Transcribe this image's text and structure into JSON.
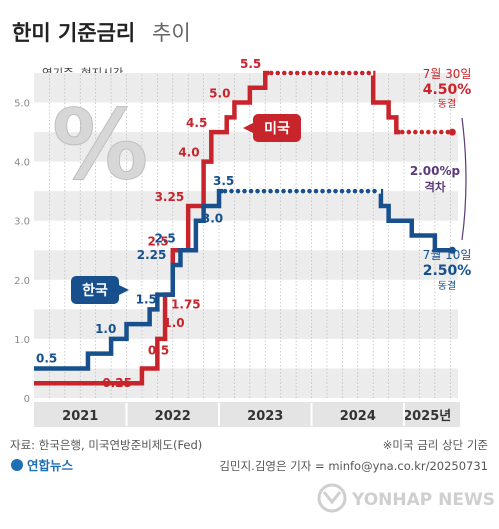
{
  "header": {
    "title": "한미 기준금리",
    "title_suffix": "추이",
    "unit_note": "연기준, 현지시간"
  },
  "badges": {
    "us": "미국",
    "kr": "한국"
  },
  "annotations": {
    "us_date": "7월 30일",
    "us_rate": "4.50%",
    "us_status": "동결",
    "kr_date": "7월 10일",
    "kr_rate": "2.50%",
    "kr_status": "동결",
    "gap_value": "2.00%p",
    "gap_label": "격차"
  },
  "footer": {
    "source": "자료: 한국은행, 미국연방준비제도(Fed)",
    "note": "※미국 금리 상단 기준",
    "credit": "김민지.김영은 기자 = minfo@yna.co.kr/20250731",
    "agency_logo": "연합뉴스",
    "watermark": "YONHAP NEWS"
  },
  "colors": {
    "us": "#c8242b",
    "kr": "#17508d",
    "gap": "#5a3a7a",
    "band": "#ececec"
  },
  "chart_data": {
    "type": "line",
    "step": true,
    "xlim": [
      "2021-01",
      "2025-08"
    ],
    "ylim": [
      0,
      5.5
    ],
    "y_ticks": [
      "0",
      "1.0",
      "2.0",
      "3.0",
      "4.0",
      "5.0"
    ],
    "x_tick_labels": [
      "2021",
      "2022",
      "2023",
      "2024",
      "2025년"
    ],
    "series": [
      {
        "name": "미국",
        "points": [
          {
            "date": "2021-01",
            "value": 0.25,
            "label": "0.25"
          },
          {
            "date": "2022-03",
            "value": 0.5,
            "label": "0.5"
          },
          {
            "date": "2022-05",
            "value": 1.0,
            "label": "1.0"
          },
          {
            "date": "2022-06",
            "value": 1.75,
            "label": "1.75"
          },
          {
            "date": "2022-07",
            "value": 2.5,
            "label": "2.5"
          },
          {
            "date": "2022-09",
            "value": 3.25,
            "label": "3.25"
          },
          {
            "date": "2022-11",
            "value": 4.0,
            "label": "4.0"
          },
          {
            "date": "2022-12",
            "value": 4.5,
            "label": "4.5"
          },
          {
            "date": "2023-02",
            "value": 4.75,
            "label": ""
          },
          {
            "date": "2023-03",
            "value": 5.0,
            "label": "5.0"
          },
          {
            "date": "2023-05",
            "value": 5.25,
            "label": ""
          },
          {
            "date": "2023-07",
            "value": 5.5,
            "label": "5.5"
          },
          {
            "date": "2024-09",
            "value": 5.0,
            "label": ""
          },
          {
            "date": "2024-11",
            "value": 4.75,
            "label": ""
          },
          {
            "date": "2024-12",
            "value": 4.5,
            "label": ""
          },
          {
            "date": "2025-07",
            "value": 4.5,
            "label": ""
          }
        ]
      },
      {
        "name": "한국",
        "points": [
          {
            "date": "2021-01",
            "value": 0.5,
            "label": "0.5"
          },
          {
            "date": "2021-08",
            "value": 0.75,
            "label": ""
          },
          {
            "date": "2021-11",
            "value": 1.0,
            "label": "1.0"
          },
          {
            "date": "2022-01",
            "value": 1.25,
            "label": ""
          },
          {
            "date": "2022-04",
            "value": 1.5,
            "label": "1.5"
          },
          {
            "date": "2022-05",
            "value": 1.75,
            "label": ""
          },
          {
            "date": "2022-07",
            "value": 2.25,
            "label": "2.25"
          },
          {
            "date": "2022-08",
            "value": 2.5,
            "label": "2.5"
          },
          {
            "date": "2022-10",
            "value": 3.0,
            "label": "3.0"
          },
          {
            "date": "2022-11",
            "value": 3.25,
            "label": ""
          },
          {
            "date": "2023-01",
            "value": 3.5,
            "label": "3.5"
          },
          {
            "date": "2024-10",
            "value": 3.25,
            "label": ""
          },
          {
            "date": "2024-11",
            "value": 3.0,
            "label": ""
          },
          {
            "date": "2025-02",
            "value": 2.75,
            "label": ""
          },
          {
            "date": "2025-05",
            "value": 2.5,
            "label": ""
          },
          {
            "date": "2025-07",
            "value": 2.5,
            "label": ""
          }
        ]
      }
    ]
  }
}
